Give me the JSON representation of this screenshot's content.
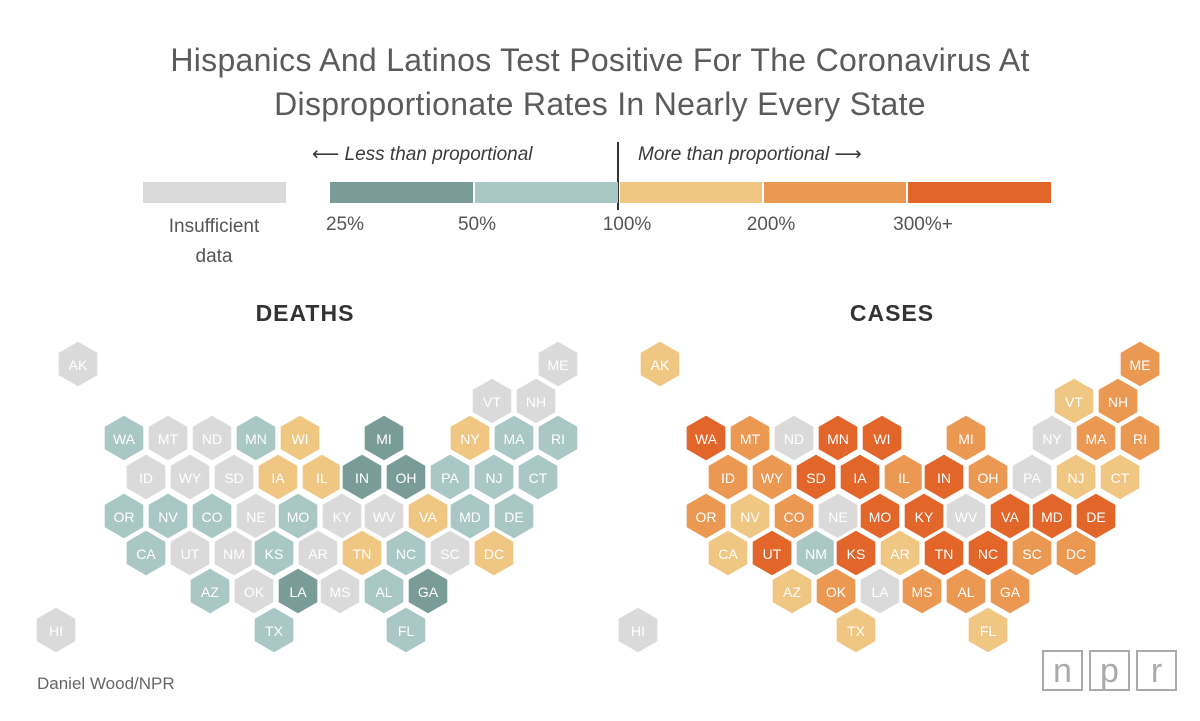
{
  "title_line1": "Hispanics And Latinos Test Positive For The Coronavirus At",
  "title_line2": "Disproportionate Rates In Nearly Every State",
  "legend": {
    "less_label": "⟵ Less than proportional",
    "more_label": "More than proportional ⟶",
    "insufficient_line1": "Insufficient",
    "insufficient_line2": "data",
    "ticks": [
      "25%",
      "50%",
      "100%",
      "200%",
      "300%+"
    ],
    "colors": {
      "insufficient": "#dadada",
      "c25": "#7a9c99",
      "c50": "#a8c7c5",
      "c100": "#f0c683",
      "c200": "#eb9853",
      "c300": "#e2652a"
    }
  },
  "maps": [
    {
      "title": "DEATHS",
      "states": {
        "AK": "insufficient",
        "ME": "insufficient",
        "VT": "insufficient",
        "NH": "insufficient",
        "WA": "c50",
        "MT": "insufficient",
        "ND": "insufficient",
        "MN": "c50",
        "WI": "c100",
        "MI": "c25",
        "NY": "c100",
        "MA": "c50",
        "RI": "c50",
        "ID": "insufficient",
        "WY": "insufficient",
        "SD": "insufficient",
        "IA": "c100",
        "IL": "c100",
        "IN": "c25",
        "OH": "c25",
        "PA": "c50",
        "NJ": "c50",
        "CT": "c50",
        "OR": "c50",
        "NV": "c50",
        "CO": "c50",
        "NE": "insufficient",
        "MO": "c50",
        "KY": "insufficient",
        "WV": "insufficient",
        "VA": "c100",
        "MD": "c50",
        "DE": "c50",
        "CA": "c50",
        "UT": "insufficient",
        "NM": "insufficient",
        "KS": "c50",
        "AR": "insufficient",
        "TN": "c100",
        "NC": "c50",
        "SC": "insufficient",
        "DC": "c100",
        "AZ": "c50",
        "OK": "insufficient",
        "LA": "c25",
        "MS": "insufficient",
        "AL": "c50",
        "GA": "c25",
        "TX": "c50",
        "FL": "c50",
        "HI": "insufficient"
      }
    },
    {
      "title": "CASES",
      "states": {
        "AK": "c100",
        "ME": "c200",
        "VT": "c100",
        "NH": "c200",
        "WA": "c300",
        "MT": "c200",
        "ND": "insufficient",
        "MN": "c300",
        "WI": "c300",
        "MI": "c200",
        "NY": "insufficient",
        "MA": "c200",
        "RI": "c200",
        "ID": "c200",
        "WY": "c200",
        "SD": "c300",
        "IA": "c300",
        "IL": "c200",
        "IN": "c300",
        "OH": "c200",
        "PA": "insufficient",
        "NJ": "c100",
        "CT": "c100",
        "OR": "c200",
        "NV": "c100",
        "CO": "c200",
        "NE": "insufficient",
        "MO": "c300",
        "KY": "c300",
        "WV": "insufficient",
        "VA": "c300",
        "MD": "c300",
        "DE": "c300",
        "CA": "c100",
        "UT": "c300",
        "NM": "c50",
        "KS": "c300",
        "AR": "c100",
        "TN": "c300",
        "NC": "c300",
        "SC": "c200",
        "DC": "c200",
        "AZ": "c100",
        "OK": "c200",
        "LA": "insufficient",
        "MS": "c200",
        "AL": "c200",
        "GA": "c200",
        "TX": "c100",
        "FL": "c100",
        "HI": "insufficient"
      }
    }
  ],
  "credit": "Daniel Wood/NPR",
  "logo": [
    "n",
    "p",
    "r"
  ]
}
